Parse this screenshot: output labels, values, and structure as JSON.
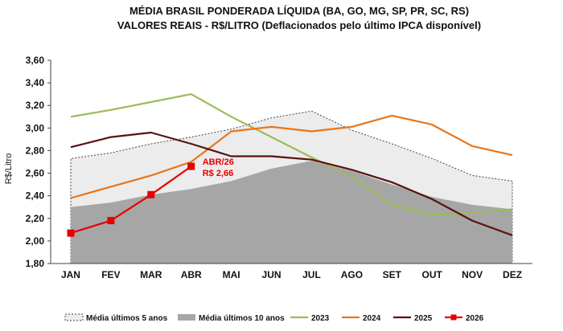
{
  "chart_data": {
    "type": "line",
    "title": "MÉDIA BRASIL PONDERADA LÍQUIDA (BA, GO, MG, SP, PR, SC, RS)",
    "subtitle": "VALORES REAIS - R$/LITRO (Deflacionados  pelo último IPCA disponível)",
    "ylabel": "R$/Litro",
    "xlabel": "",
    "ylim": [
      1.8,
      3.6
    ],
    "yticks": [
      "1,80",
      "2,00",
      "2,20",
      "2,40",
      "2,60",
      "2,80",
      "3,00",
      "3,20",
      "3,40",
      "3,60"
    ],
    "categories": [
      "JAN",
      "FEV",
      "MAR",
      "ABR",
      "MAI",
      "JUN",
      "JUL",
      "AGO",
      "SET",
      "OUT",
      "NOV",
      "DEZ"
    ],
    "areas": [
      {
        "name": "Média últimos 5 anos",
        "values": [
          2.73,
          2.78,
          2.86,
          2.92,
          2.99,
          3.09,
          3.15,
          2.98,
          2.86,
          2.73,
          2.58,
          2.53
        ],
        "fill": "#ececec",
        "stroke": "#444444"
      },
      {
        "name": "Média últimos 10 anos",
        "values": [
          2.3,
          2.34,
          2.41,
          2.46,
          2.53,
          2.64,
          2.71,
          2.62,
          2.5,
          2.39,
          2.32,
          2.28
        ],
        "fill": "#a6a6a6",
        "stroke": "#a6a6a6"
      }
    ],
    "series": [
      {
        "name": "2023",
        "values": [
          3.1,
          3.16,
          3.23,
          3.3,
          3.1,
          2.92,
          2.74,
          2.57,
          2.32,
          2.23,
          2.25,
          2.28
        ],
        "color": "#9bbb59"
      },
      {
        "name": "2024",
        "values": [
          2.38,
          2.48,
          2.58,
          2.7,
          2.97,
          3.01,
          2.97,
          3.01,
          3.11,
          3.03,
          2.84,
          2.76
        ],
        "color": "#e8751a"
      },
      {
        "name": "2025",
        "values": [
          2.83,
          2.92,
          2.96,
          2.86,
          2.75,
          2.75,
          2.72,
          2.63,
          2.52,
          2.37,
          2.18,
          2.05
        ],
        "color": "#5a1212"
      },
      {
        "name": "2026",
        "values": [
          2.07,
          2.18,
          2.41,
          2.66,
          null,
          null,
          null,
          null,
          null,
          null,
          null,
          null
        ],
        "color": "#e60000",
        "markers": true
      }
    ],
    "annotation": {
      "line1": "ABR/26",
      "line2": "R$ 2,66",
      "category": "ABR",
      "value": 2.66
    },
    "grid": false,
    "legend_position": "bottom"
  }
}
